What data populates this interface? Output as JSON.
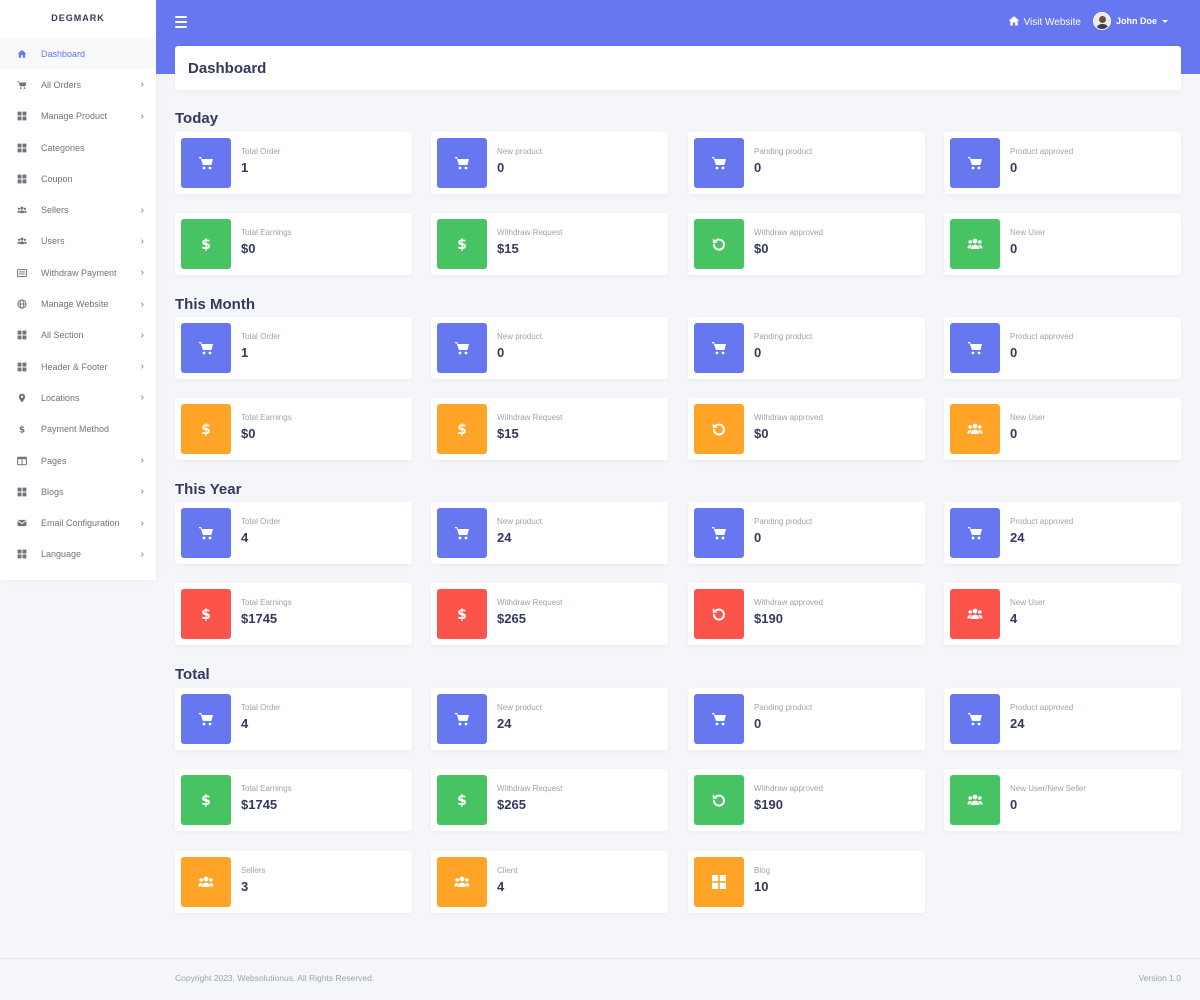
{
  "brand": "DEGMARK",
  "topbar": {
    "visit_label": "Visit Website",
    "user_name": "John Doe"
  },
  "sidebar": {
    "items": [
      {
        "label": "Dashboard",
        "icon": "home-icon",
        "chevron": false,
        "active": true
      },
      {
        "label": "All Orders",
        "icon": "cart-icon",
        "chevron": true
      },
      {
        "label": "Manage Product",
        "icon": "grid-icon",
        "chevron": true
      },
      {
        "label": "Categories",
        "icon": "grid-icon",
        "chevron": false
      },
      {
        "label": "Coupon",
        "icon": "grid-icon",
        "chevron": false
      },
      {
        "label": "Sellers",
        "icon": "users-icon",
        "chevron": true
      },
      {
        "label": "Users",
        "icon": "users-icon",
        "chevron": true
      },
      {
        "label": "Withdraw Payment",
        "icon": "list-icon",
        "chevron": true
      },
      {
        "label": "Manage Website",
        "icon": "globe-icon",
        "chevron": true
      },
      {
        "label": "All Section",
        "icon": "grid-icon",
        "chevron": true
      },
      {
        "label": "Header & Footer",
        "icon": "grid-icon",
        "chevron": true
      },
      {
        "label": "Locations",
        "icon": "pin-icon",
        "chevron": true
      },
      {
        "label": "Payment Method",
        "icon": "dollar-icon",
        "chevron": false
      },
      {
        "label": "Pages",
        "icon": "columns-icon",
        "chevron": true
      },
      {
        "label": "Blogs",
        "icon": "grid-icon",
        "chevron": true
      },
      {
        "label": "Email Configuration",
        "icon": "envelope-icon",
        "chevron": true
      },
      {
        "label": "Language",
        "icon": "grid-icon",
        "chevron": true
      }
    ]
  },
  "page_title": "Dashboard",
  "sections": [
    {
      "title": "Today",
      "rows": [
        [
          {
            "label": "Total Order",
            "value": "1",
            "icon": "cart-icon",
            "color": "#6777ef"
          },
          {
            "label": "New product",
            "value": "0",
            "icon": "cart-icon",
            "color": "#6777ef"
          },
          {
            "label": "Panding product",
            "value": "0",
            "icon": "cart-icon",
            "color": "#6777ef"
          },
          {
            "label": "Product approved",
            "value": "0",
            "icon": "cart-icon",
            "color": "#6777ef"
          }
        ],
        [
          {
            "label": "Total Earnings",
            "value": "$0",
            "icon": "dollar-icon",
            "color": "#47c363"
          },
          {
            "label": "Withdraw Request",
            "value": "$15",
            "icon": "dollar-icon",
            "color": "#47c363"
          },
          {
            "label": "Withdraw approved",
            "value": "$0",
            "icon": "undo-icon",
            "color": "#47c363"
          },
          {
            "label": "New User",
            "value": "0",
            "icon": "users-icon",
            "color": "#47c363"
          }
        ]
      ]
    },
    {
      "title": "This Month",
      "rows": [
        [
          {
            "label": "Total Order",
            "value": "1",
            "icon": "cart-icon",
            "color": "#6777ef"
          },
          {
            "label": "New product",
            "value": "0",
            "icon": "cart-icon",
            "color": "#6777ef"
          },
          {
            "label": "Panding product",
            "value": "0",
            "icon": "cart-icon",
            "color": "#6777ef"
          },
          {
            "label": "Product approved",
            "value": "0",
            "icon": "cart-icon",
            "color": "#6777ef"
          }
        ],
        [
          {
            "label": "Total Earnings",
            "value": "$0",
            "icon": "dollar-icon",
            "color": "#ffa426"
          },
          {
            "label": "Withdraw Request",
            "value": "$15",
            "icon": "dollar-icon",
            "color": "#ffa426"
          },
          {
            "label": "Withdraw approved",
            "value": "$0",
            "icon": "undo-icon",
            "color": "#ffa426"
          },
          {
            "label": "New User",
            "value": "0",
            "icon": "users-icon",
            "color": "#ffa426"
          }
        ]
      ]
    },
    {
      "title": "This Year",
      "rows": [
        [
          {
            "label": "Total Order",
            "value": "4",
            "icon": "cart-icon",
            "color": "#6777ef"
          },
          {
            "label": "New product",
            "value": "24",
            "icon": "cart-icon",
            "color": "#6777ef"
          },
          {
            "label": "Panding product",
            "value": "0",
            "icon": "cart-icon",
            "color": "#6777ef"
          },
          {
            "label": "Product approved",
            "value": "24",
            "icon": "cart-icon",
            "color": "#6777ef"
          }
        ],
        [
          {
            "label": "Total Earnings",
            "value": "$1745",
            "icon": "dollar-icon",
            "color": "#fc544b"
          },
          {
            "label": "Withdraw Request",
            "value": "$265",
            "icon": "dollar-icon",
            "color": "#fc544b"
          },
          {
            "label": "Withdraw approved",
            "value": "$190",
            "icon": "undo-icon",
            "color": "#fc544b"
          },
          {
            "label": "New User",
            "value": "4",
            "icon": "users-icon",
            "color": "#fc544b"
          }
        ]
      ]
    },
    {
      "title": "Total",
      "rows": [
        [
          {
            "label": "Total Order",
            "value": "4",
            "icon": "cart-icon",
            "color": "#6777ef"
          },
          {
            "label": "New product",
            "value": "24",
            "icon": "cart-icon",
            "color": "#6777ef"
          },
          {
            "label": "Panding product",
            "value": "0",
            "icon": "cart-icon",
            "color": "#6777ef"
          },
          {
            "label": "Product approved",
            "value": "24",
            "icon": "cart-icon",
            "color": "#6777ef"
          }
        ],
        [
          {
            "label": "Total Earnings",
            "value": "$1745",
            "icon": "dollar-icon",
            "color": "#47c363"
          },
          {
            "label": "Withdraw Request",
            "value": "$265",
            "icon": "dollar-icon",
            "color": "#47c363"
          },
          {
            "label": "Withdraw approved",
            "value": "$190",
            "icon": "undo-icon",
            "color": "#47c363"
          },
          {
            "label": "New User/New Seller",
            "value": "0",
            "icon": "users-icon",
            "color": "#47c363"
          }
        ],
        [
          {
            "label": "Sellers",
            "value": "3",
            "icon": "users-icon",
            "color": "#ffa426"
          },
          {
            "label": "Client",
            "value": "4",
            "icon": "users-icon",
            "color": "#ffa426"
          },
          {
            "label": "Blog",
            "value": "10",
            "icon": "grid-icon",
            "color": "#ffa426"
          }
        ]
      ]
    }
  ],
  "footer": {
    "copyright": "Copyright 2023, Websolutionus. All Rights Reserved.",
    "version": "Version 1.0"
  }
}
